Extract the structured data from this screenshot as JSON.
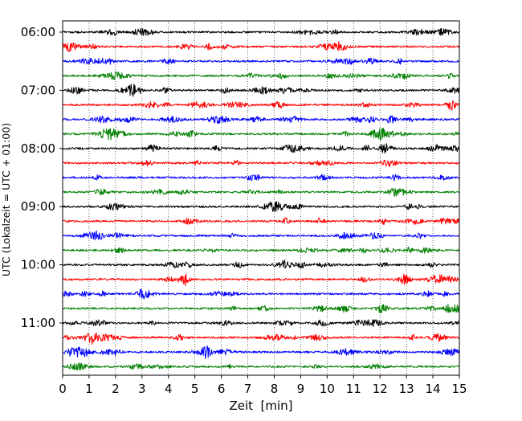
{
  "chart_data": {
    "type": "line",
    "subtype": "helicorder",
    "title": "",
    "xlabel": "Zeit  [min]",
    "ylabel": "UTC (Lokalzeit = UTC + 01:00)",
    "xlim": [
      0,
      15
    ],
    "x_ticks": [
      "0",
      "1",
      "2",
      "3",
      "4",
      "5",
      "6",
      "7",
      "8",
      "9",
      "10",
      "11",
      "12",
      "13",
      "14",
      "15"
    ],
    "y_tick_labels": [
      "06:00",
      "07:00",
      "08:00",
      "09:00",
      "10:00",
      "11:00"
    ],
    "grid": {
      "x": true,
      "style": "dotted"
    },
    "trace_colors": [
      "#000000",
      "#ff0000",
      "#0000ff",
      "#008000"
    ],
    "traces": [
      {
        "start": "06:00"
      },
      {
        "start": "06:15"
      },
      {
        "start": "06:30"
      },
      {
        "start": "06:45"
      },
      {
        "start": "07:00"
      },
      {
        "start": "07:15"
      },
      {
        "start": "07:30"
      },
      {
        "start": "07:45"
      },
      {
        "start": "08:00"
      },
      {
        "start": "08:15"
      },
      {
        "start": "08:30"
      },
      {
        "start": "08:45"
      },
      {
        "start": "09:00"
      },
      {
        "start": "09:15"
      },
      {
        "start": "09:30"
      },
      {
        "start": "09:45"
      },
      {
        "start": "10:00"
      },
      {
        "start": "10:15"
      },
      {
        "start": "10:30"
      },
      {
        "start": "10:45"
      },
      {
        "start": "11:00"
      },
      {
        "start": "11:15"
      },
      {
        "start": "11:30"
      },
      {
        "start": "11:45"
      }
    ]
  }
}
